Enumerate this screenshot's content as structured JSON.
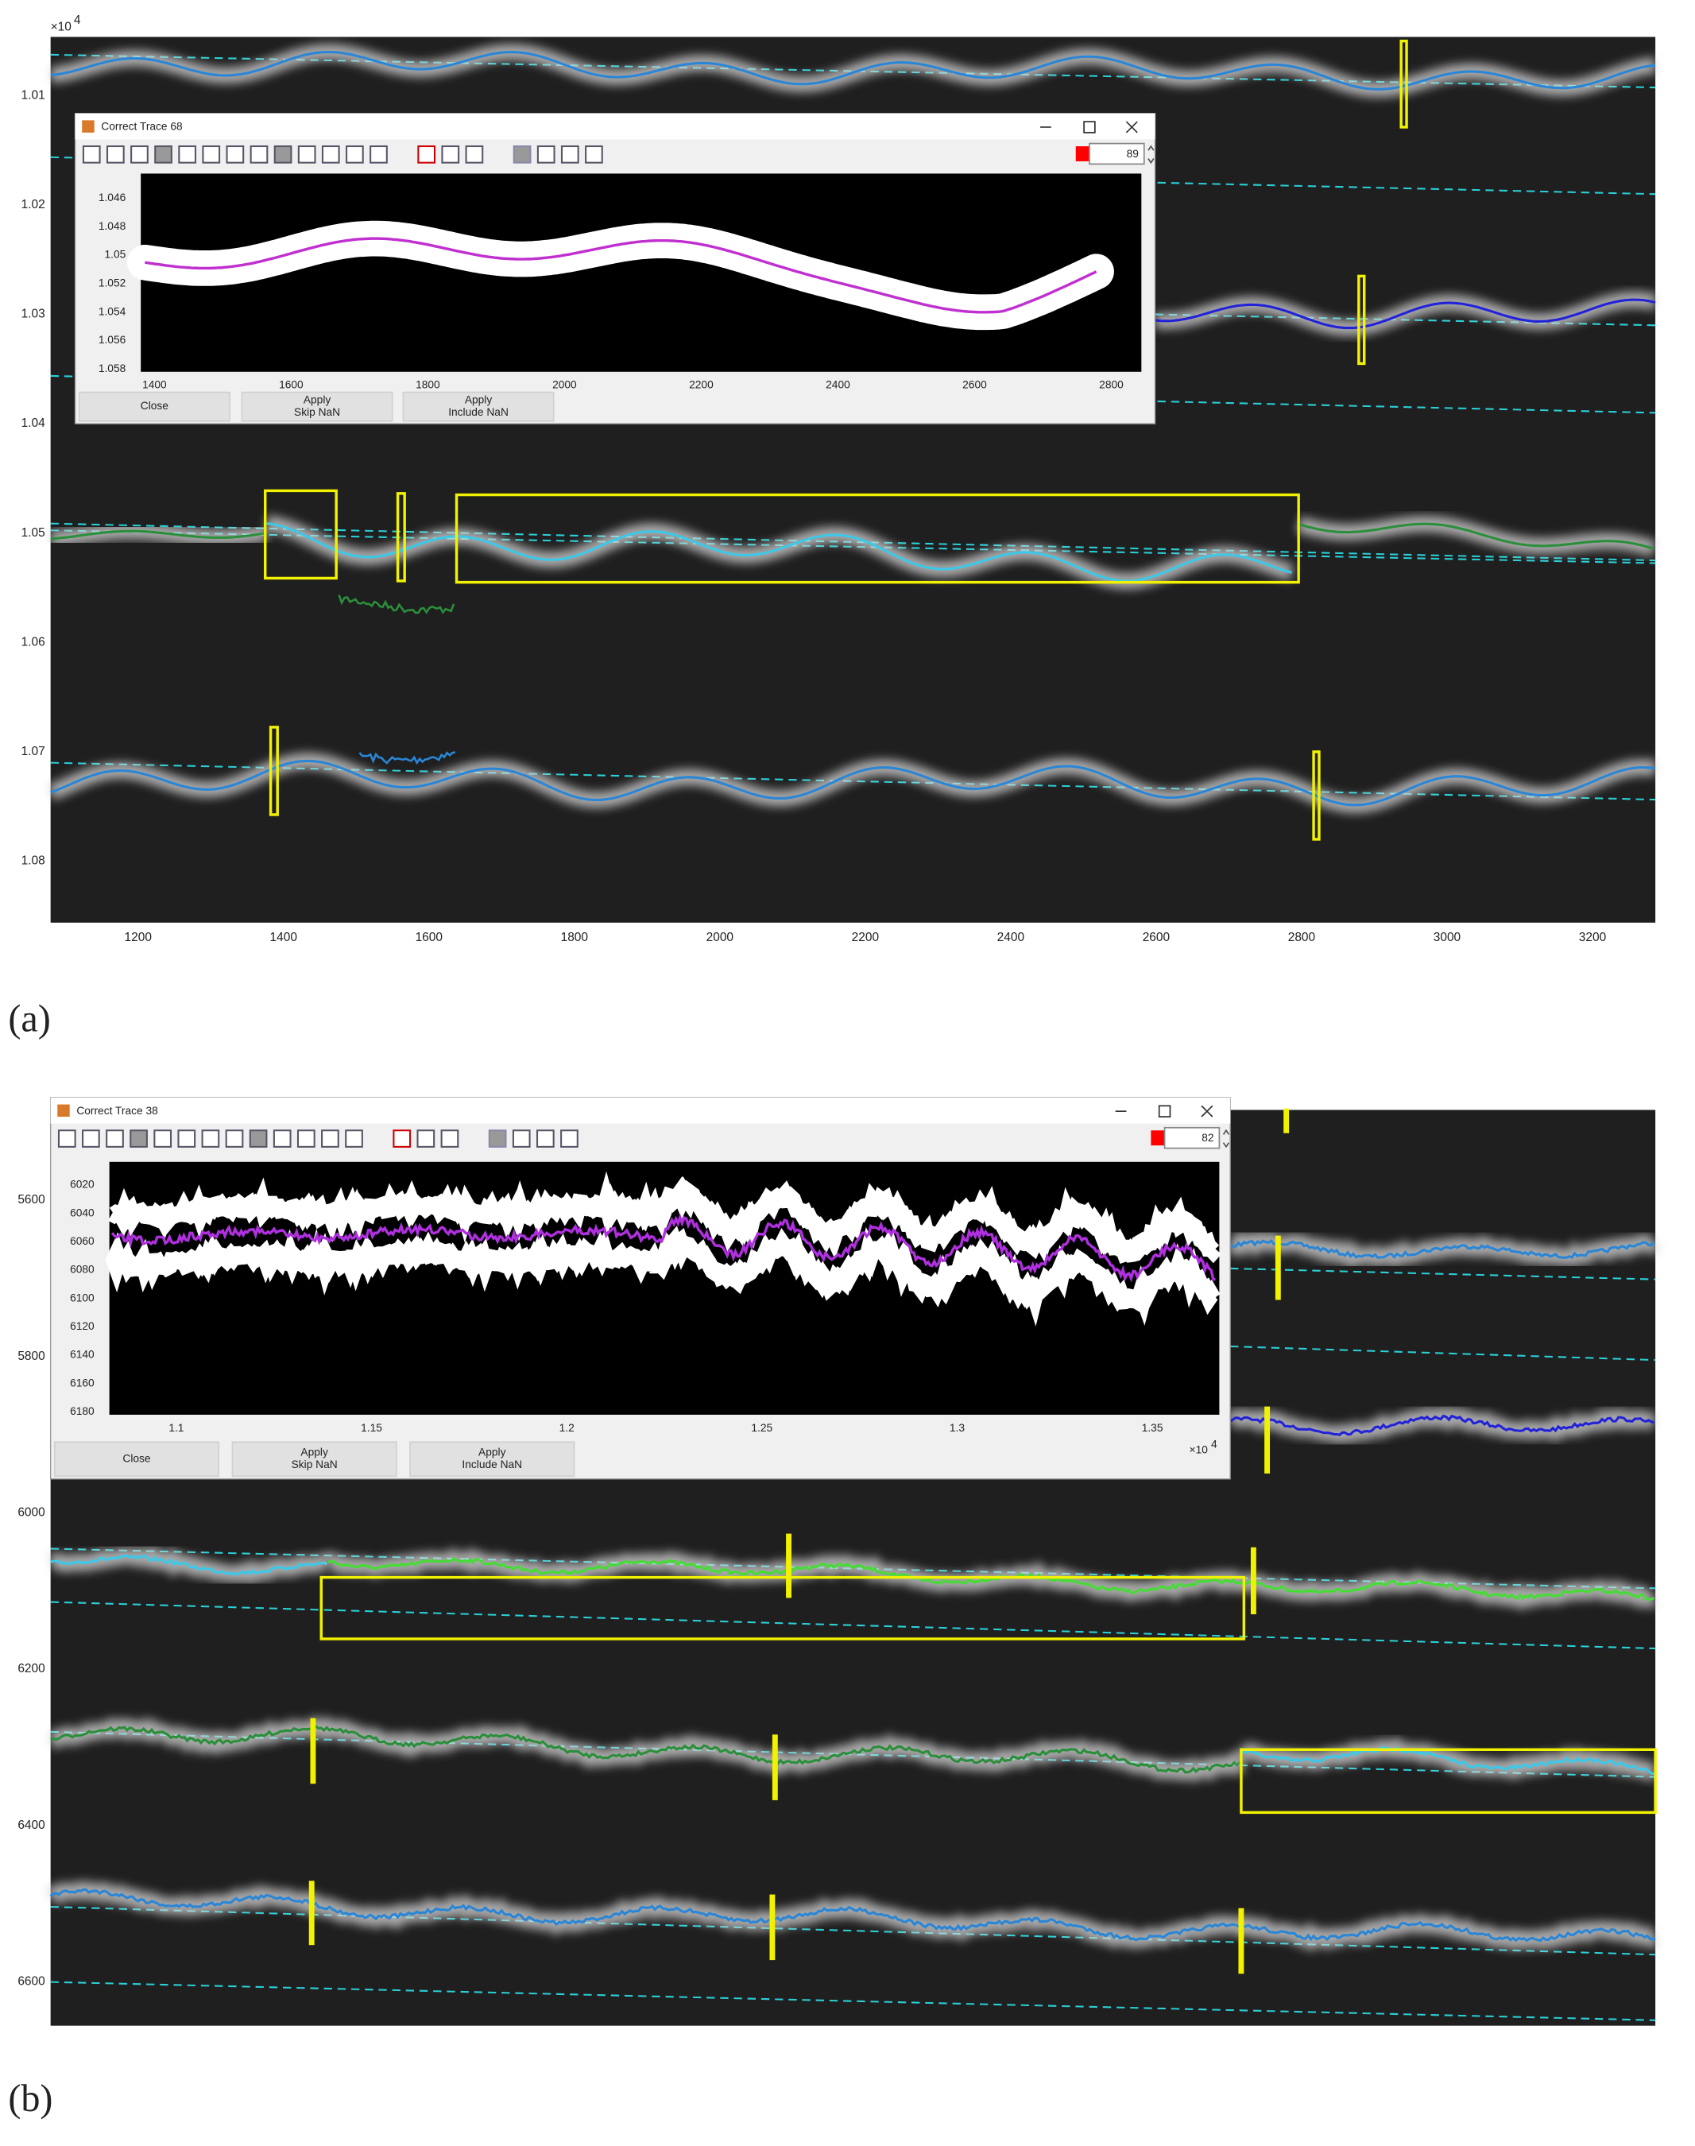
{
  "panels": [
    {
      "label": "(a)",
      "y_axis": {
        "exponent_base": "×10",
        "exponent_power": "4",
        "ticks": [
          "1.01",
          "1.02",
          "1.03",
          "1.04",
          "1.05",
          "1.06",
          "1.07",
          "1.08"
        ]
      },
      "x_axis": {
        "ticks": [
          "1200",
          "1400",
          "1600",
          "1800",
          "2000",
          "2200",
          "2400",
          "2600",
          "2800",
          "3000",
          "3200"
        ]
      },
      "window": {
        "title": "Correct Trace  68",
        "field_value": "89",
        "buttons": [
          {
            "lines": [
              "Close"
            ]
          },
          {
            "lines": [
              "Apply",
              "Skip NaN"
            ]
          },
          {
            "lines": [
              "Apply",
              "Include NaN"
            ]
          }
        ],
        "plot": {
          "y_ticks": [
            "1.046",
            "1.048",
            "1.05",
            "1.052",
            "1.054",
            "1.056",
            "1.058"
          ],
          "x_ticks": [
            "1400",
            "1600",
            "1800",
            "2000",
            "2200",
            "2400",
            "2600",
            "2800"
          ]
        }
      }
    },
    {
      "label": "(b)",
      "y_axis": {
        "ticks": [
          "5600",
          "5800",
          "6000",
          "6200",
          "6400",
          "6600"
        ]
      },
      "window": {
        "title": "Correct Trace  38",
        "field_value": "82",
        "buttons": [
          {
            "lines": [
              "Close"
            ]
          },
          {
            "lines": [
              "Apply",
              "Skip NaN"
            ]
          },
          {
            "lines": [
              "Apply",
              "Include NaN"
            ]
          }
        ],
        "plot": {
          "y_ticks": [
            "6020",
            "6040",
            "6060",
            "6080",
            "6100",
            "6120",
            "6140",
            "6160",
            "6180"
          ],
          "x_ticks": [
            "1.1",
            "1.15",
            "1.2",
            "1.25",
            "1.3",
            "1.35"
          ],
          "x_exponent_base": "×10",
          "x_exponent_power": "4"
        }
      }
    }
  ]
}
